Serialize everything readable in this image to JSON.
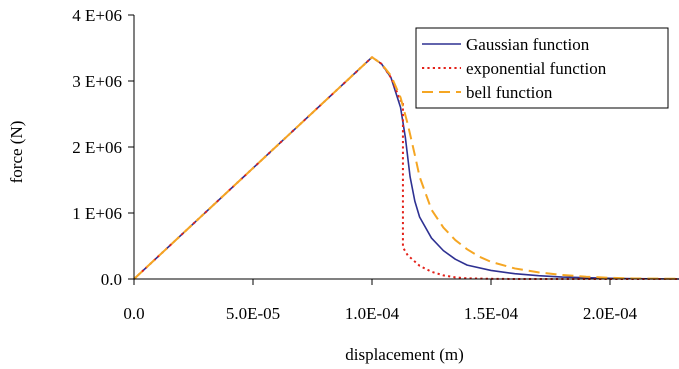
{
  "chart_data": {
    "type": "line",
    "xlabel": "displacement (m)",
    "ylabel": "force (N)",
    "xlim": [
      0,
      0.000229
    ],
    "ylim": [
      0,
      4000000
    ],
    "x_ticks": [
      0,
      5e-05,
      0.0001,
      0.00015,
      0.0002
    ],
    "x_tick_labels": [
      "0.0",
      "5.0E-05",
      "1.0E-04",
      "1.5E-04",
      "2.0E-04"
    ],
    "y_ticks": [
      0,
      1000000,
      2000000,
      3000000,
      4000000
    ],
    "y_tick_labels": [
      "0.0",
      "1 E+06",
      "2 E+06",
      "3 E+06",
      "4 E+06"
    ],
    "grid": false,
    "legend_position": "top-right",
    "series": [
      {
        "name": "Gaussian function",
        "color": "#2e3192",
        "dash": "solid",
        "points": [
          [
            0,
            0
          ],
          [
            0.0001,
            3360000
          ],
          [
            0.000104,
            3260000
          ],
          [
            0.000108,
            3050000
          ],
          [
            0.000112,
            2600000
          ],
          [
            0.000114,
            2150000
          ],
          [
            0.000116,
            1550000
          ],
          [
            0.000118,
            1180000
          ],
          [
            0.00012,
            940000
          ],
          [
            0.000125,
            620000
          ],
          [
            0.00013,
            430000
          ],
          [
            0.000135,
            300000
          ],
          [
            0.00014,
            210000
          ],
          [
            0.00015,
            130000
          ],
          [
            0.00016,
            80000
          ],
          [
            0.00017,
            50000
          ],
          [
            0.00018,
            30000
          ],
          [
            0.00019,
            20000
          ],
          [
            0.0002,
            10000
          ],
          [
            0.00021,
            5000
          ],
          [
            0.000229,
            0
          ]
        ]
      },
      {
        "name": "exponential function",
        "color": "#e32119",
        "dash": "dotted",
        "points": [
          [
            0,
            0
          ],
          [
            0.0001,
            3360000
          ],
          [
            0.000104,
            3260000
          ],
          [
            0.000108,
            3050000
          ],
          [
            0.000112,
            2700000
          ],
          [
            0.000113,
            2700000
          ],
          [
            0.000113,
            480000
          ],
          [
            0.000115,
            360000
          ],
          [
            0.00012,
            200000
          ],
          [
            0.000125,
            110000
          ],
          [
            0.00013,
            55000
          ],
          [
            0.000135,
            25000
          ],
          [
            0.00014,
            10000
          ],
          [
            0.00015,
            3000
          ],
          [
            0.00016,
            0
          ],
          [
            0.000229,
            0
          ]
        ]
      },
      {
        "name": "bell function",
        "color": "#f5a623",
        "dash": "dashed",
        "points": [
          [
            0,
            0
          ],
          [
            0.0001,
            3360000
          ],
          [
            0.000104,
            3260000
          ],
          [
            0.000108,
            3080000
          ],
          [
            0.000112,
            2750000
          ],
          [
            0.000115,
            2350000
          ],
          [
            0.000118,
            1880000
          ],
          [
            0.00012,
            1550000
          ],
          [
            0.000125,
            1050000
          ],
          [
            0.00013,
            780000
          ],
          [
            0.000135,
            590000
          ],
          [
            0.00014,
            450000
          ],
          [
            0.000145,
            340000
          ],
          [
            0.00015,
            260000
          ],
          [
            0.00016,
            160000
          ],
          [
            0.00017,
            100000
          ],
          [
            0.00018,
            60000
          ],
          [
            0.00019,
            35000
          ],
          [
            0.0002,
            18000
          ],
          [
            0.00021,
            8000
          ],
          [
            0.000229,
            3000
          ]
        ]
      }
    ]
  }
}
